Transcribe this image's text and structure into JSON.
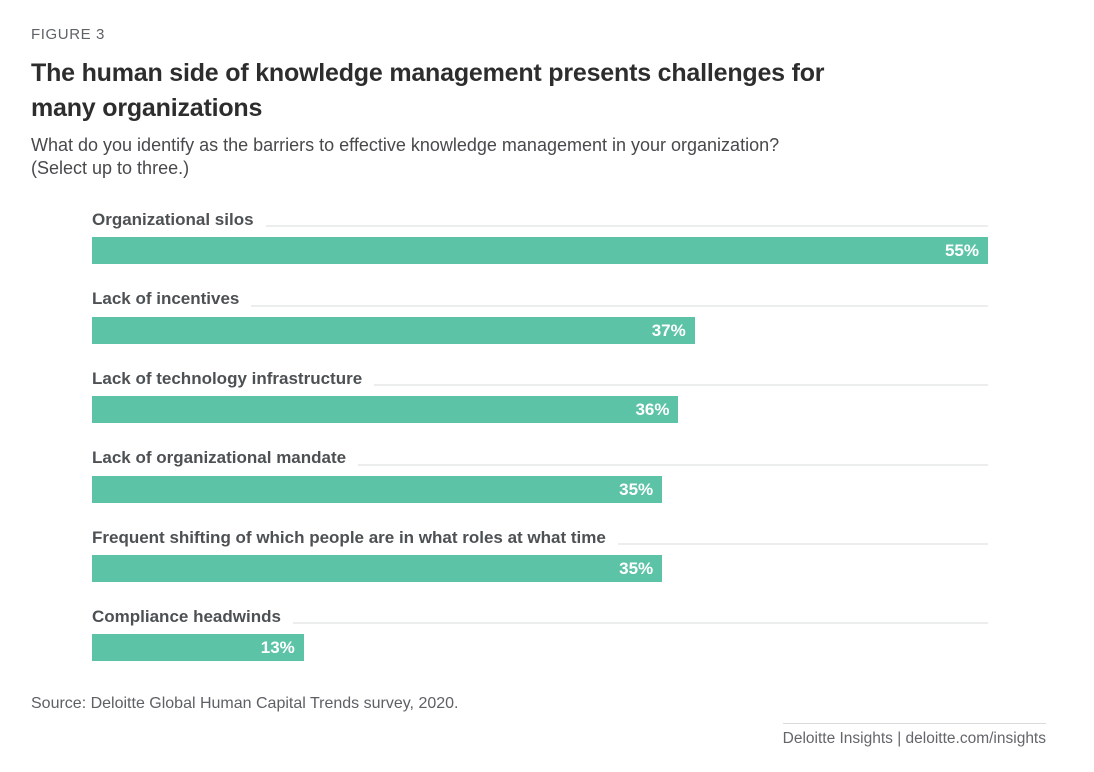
{
  "page": {
    "figure_label": "FIGURE 3",
    "title_line1": "The human side of knowledge management presents challenges for",
    "title_line2": "many organizations",
    "subtitle_line1": "What do you identify as the barriers to effective knowledge management in your organization?",
    "subtitle_line2": "(Select up to three.)",
    "source": "Source: Deloitte Global Human Capital Trends survey, 2020.",
    "footer_text": "Deloitte Insights | deloitte.com/insights"
  },
  "colors": {
    "bar": "#5cc3a7",
    "bar_value_text": "#ffffff",
    "figure_label_text": "#5f6266",
    "title_text": "#2d2d2d",
    "subtitle_text": "#48494b",
    "category_label_text": "#4d5154",
    "label_rule": "#eceeee",
    "source_text": "#5d6064",
    "footer_text": "#63666a"
  },
  "chart_data": {
    "type": "bar",
    "orientation": "horizontal",
    "title": "The human side of knowledge management presents challenges for many organizations",
    "question": "What do you identify as the barriers to effective knowledge management in your organization? (Select up to three.)",
    "categories": [
      "Organizational silos",
      "Lack of incentives",
      "Lack of technology infrastructure",
      "Lack of organizational mandate",
      "Frequent shifting of which people are in what roles at what time",
      "Compliance headwinds"
    ],
    "values": [
      55,
      37,
      36,
      35,
      35,
      13
    ],
    "value_labels": [
      "55%",
      "37%",
      "36%",
      "35%",
      "35%",
      "13%"
    ],
    "unit": "%",
    "scale_max": 55,
    "bar_color": "#5cc3a7",
    "grid": false,
    "legend": false,
    "value_label_position": "inside-right"
  }
}
